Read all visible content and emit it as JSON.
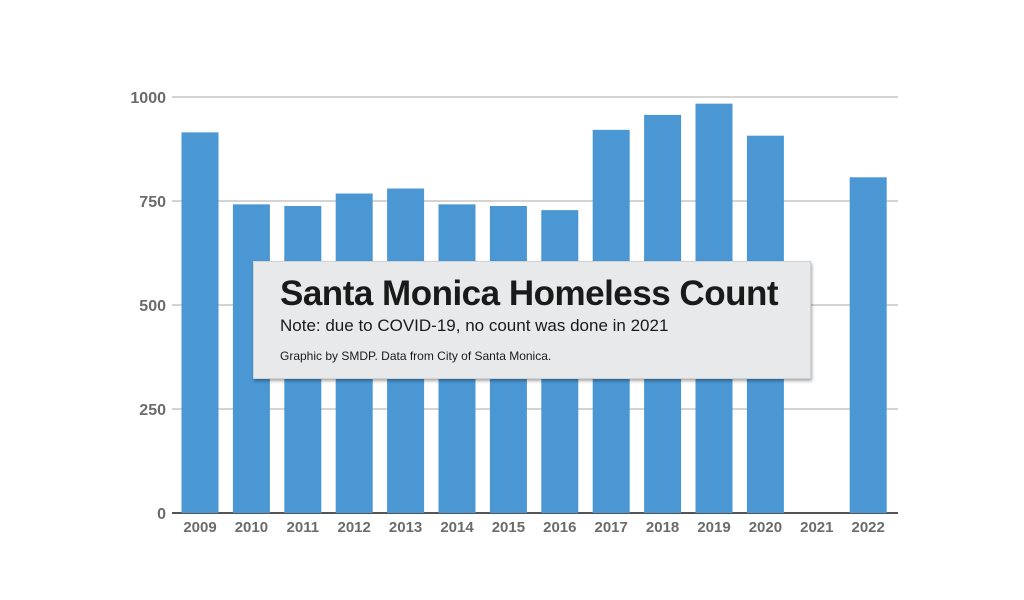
{
  "chart_data": {
    "type": "bar",
    "title": "Santa Monica Homeless Count",
    "subtitle": "Note: due to COVID-19, no count was done in 2021",
    "credit": "Graphic by SMDP.  Data from City of Santa Monica.",
    "categories": [
      "2009",
      "2010",
      "2011",
      "2012",
      "2013",
      "2014",
      "2015",
      "2016",
      "2017",
      "2018",
      "2019",
      "2020",
      "2021",
      "2022"
    ],
    "values": [
      915,
      742,
      738,
      768,
      780,
      742,
      738,
      728,
      921,
      957,
      984,
      907,
      null,
      807
    ],
    "y_ticks": [
      "0",
      "250",
      "500",
      "750",
      "1000"
    ],
    "ylim": [
      0,
      1000
    ],
    "xlabel": "",
    "ylabel": "",
    "bar_color": "#4a97d4",
    "grid": true
  }
}
